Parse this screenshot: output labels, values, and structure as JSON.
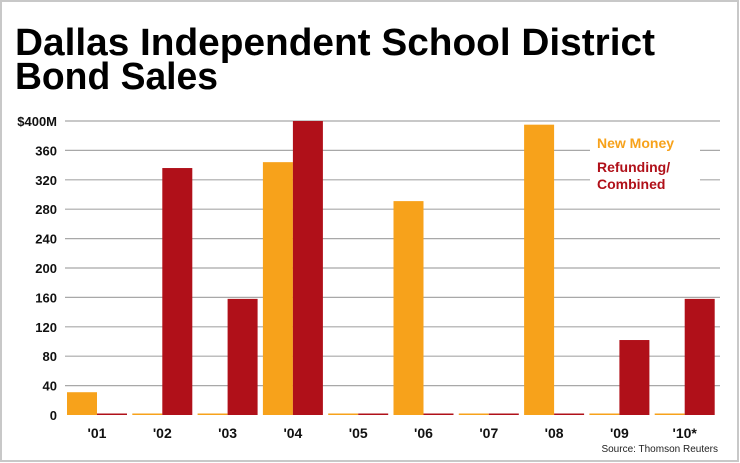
{
  "chart_data": {
    "type": "bar",
    "title_lines": [
      "Dallas Independent School District",
      "Bond Sales"
    ],
    "categories": [
      "'01",
      "'02",
      "'03",
      "'04",
      "'05",
      "'06",
      "'07",
      "'08",
      "'09",
      "'10*"
    ],
    "series": [
      {
        "name": "New Money",
        "color": "#f7a21b",
        "values": [
          31,
          0,
          0,
          344,
          0,
          291,
          0,
          395,
          0,
          0
        ]
      },
      {
        "name": "Refunding/Combined",
        "legend_lines": [
          "Refunding/",
          "Combined"
        ],
        "color": "#b01019",
        "values": [
          0,
          336,
          158,
          400,
          0,
          0,
          0,
          0,
          102,
          158
        ]
      }
    ],
    "ylim": [
      0,
      400
    ],
    "yticks": [
      0,
      40,
      80,
      120,
      160,
      200,
      240,
      280,
      320,
      360,
      400
    ],
    "ytick_labels": [
      "0",
      "40",
      "80",
      "120",
      "160",
      "200",
      "240",
      "280",
      "320",
      "360",
      "$400M"
    ],
    "xlabel": "",
    "ylabel": "",
    "grid": true,
    "legend_placement": "top-right",
    "source": "Source: Thomson Reuters"
  }
}
